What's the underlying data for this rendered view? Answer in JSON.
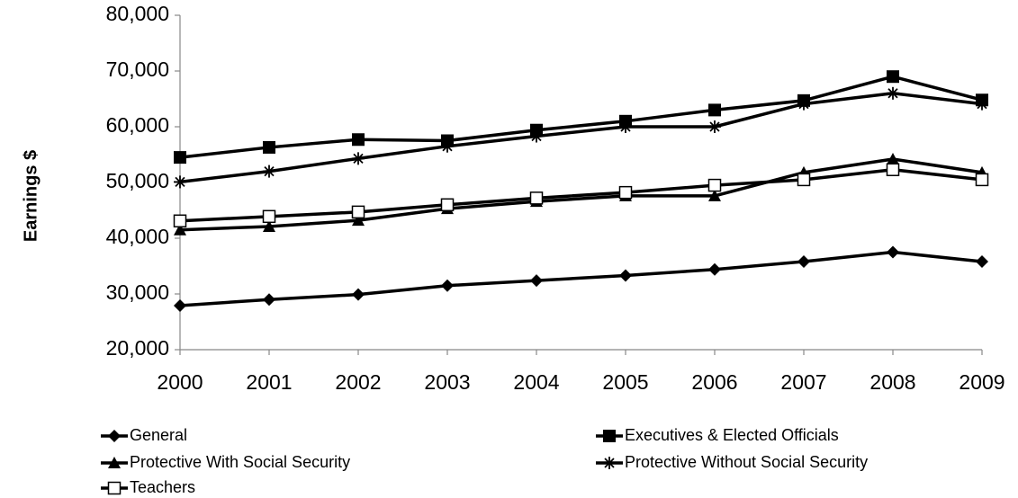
{
  "chart_data": {
    "type": "line",
    "title": "",
    "xlabel": "",
    "ylabel": "Earnings $",
    "x": [
      "2000",
      "2001",
      "2002",
      "2003",
      "2004",
      "2005",
      "2006",
      "2007",
      "2008",
      "2009"
    ],
    "ylim": [
      20000,
      80000
    ],
    "yticks": [
      20000,
      30000,
      40000,
      50000,
      60000,
      70000,
      80000
    ],
    "ytick_labels": [
      "20,000",
      "30,000",
      "40,000",
      "50,000",
      "60,000",
      "70,000",
      "80,000"
    ],
    "grid": false,
    "legend_position": "bottom",
    "series": [
      {
        "name": "General",
        "marker": "diamond",
        "color": "#000000",
        "values": [
          27900,
          29000,
          29900,
          31500,
          32400,
          33300,
          34400,
          35800,
          37500,
          35800
        ]
      },
      {
        "name": "Executives & Elected Officials",
        "marker": "square",
        "color": "#000000",
        "values": [
          54500,
          56300,
          57700,
          57500,
          59400,
          61000,
          63000,
          64700,
          69000,
          64800
        ]
      },
      {
        "name": "Protective With Social Security",
        "marker": "triangle",
        "color": "#000000",
        "values": [
          41500,
          42100,
          43200,
          45300,
          46600,
          47600,
          47600,
          51800,
          54200,
          51800
        ]
      },
      {
        "name": "Protective Without Social Security",
        "marker": "asterisk",
        "color": "#000000",
        "values": [
          50100,
          52000,
          54300,
          56500,
          58300,
          60000,
          60000,
          64100,
          66000,
          64100
        ]
      },
      {
        "name": "Teachers",
        "marker": "open-square",
        "color": "#000000",
        "values": [
          43100,
          43900,
          44700,
          46000,
          47200,
          48200,
          49500,
          50500,
          52300,
          50500
        ]
      }
    ]
  }
}
